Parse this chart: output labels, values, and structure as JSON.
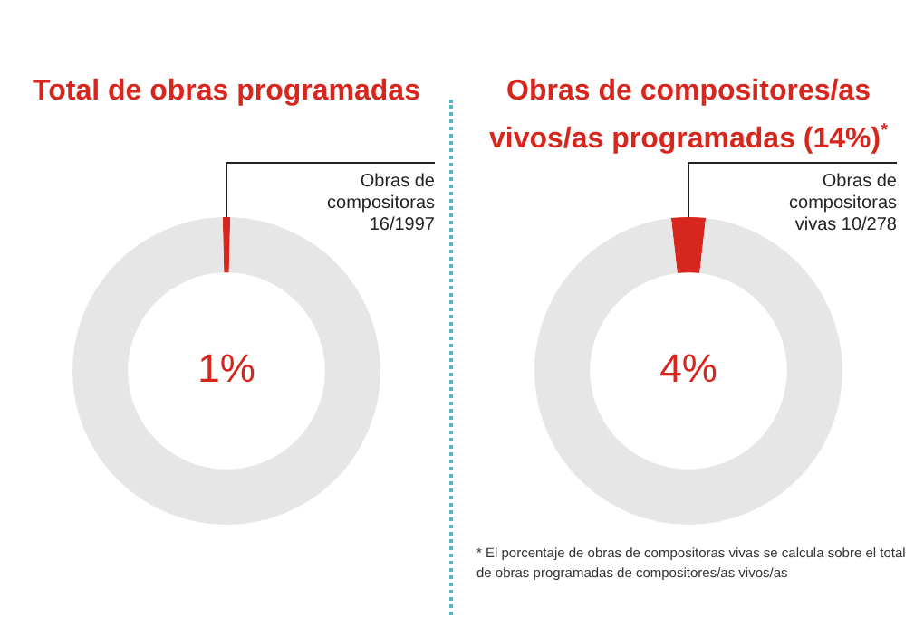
{
  "chart_data": [
    {
      "type": "donut",
      "title": "Total de obras programadas",
      "categories": [
        "Obras de compositoras 16/1997",
        null
      ],
      "values": [
        16,
        1981
      ],
      "colors": [
        "#d7261e",
        "#e6e6e6"
      ],
      "legend": false,
      "annotations": [
        "1%"
      ]
    },
    {
      "type": "donut",
      "title": "Obras de compositores/as vivos/as programadas (14%)$^{*}$",
      "categories": [
        "Obras de compositoras vivas 10/278",
        null
      ],
      "values": [
        10,
        268
      ],
      "colors": [
        "#d7261e",
        "#e6e6e6"
      ],
      "legend": false,
      "annotations": [
        "4%",
        "* El porcentaje de obras de compositoras vivas se calcula sobre el total de obras programadas de compositores/as vivos/as"
      ]
    }
  ]
}
